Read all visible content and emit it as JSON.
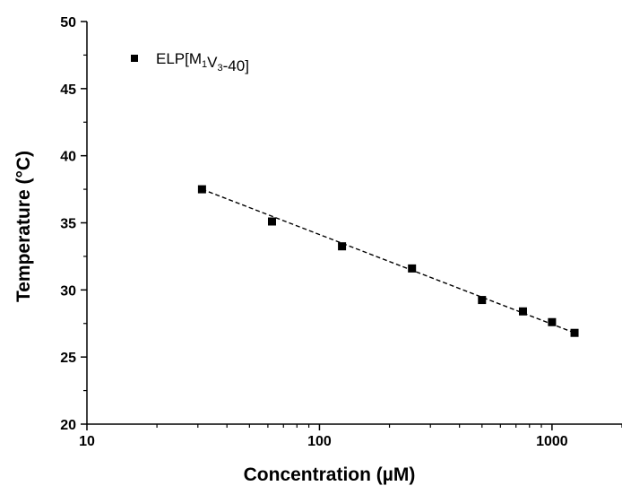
{
  "chart_data": {
    "type": "scatter",
    "xlabel": "Concentration (µM)",
    "ylabel": "Temperature (°C)",
    "xscale": "log",
    "xlim": [
      10,
      2000
    ],
    "ylim": [
      20,
      50
    ],
    "x_ticks": [
      10,
      100,
      1000
    ],
    "x_tick_labels": [
      "10",
      "100",
      "1000"
    ],
    "y_ticks": [
      20,
      25,
      30,
      35,
      40,
      45,
      50
    ],
    "y_tick_labels": [
      "20",
      "25",
      "30",
      "35",
      "40",
      "45",
      "50"
    ],
    "grid": false,
    "legend_position": "top-left",
    "series": [
      {
        "name": "ELP[M1V3-40]",
        "marker": "square",
        "color": "#000000",
        "x": [
          31.25,
          62.5,
          125,
          250,
          500,
          750,
          1000,
          1250
        ],
        "y": [
          37.5,
          35.1,
          33.25,
          31.6,
          29.25,
          28.4,
          27.6,
          26.8
        ]
      }
    ],
    "fit_line": {
      "style": "dashed",
      "color": "#000000",
      "x": [
        31.25,
        1250
      ],
      "y": [
        37.5,
        26.8
      ]
    },
    "legend": {
      "parts": [
        {
          "text": "ELP[M",
          "sub": false
        },
        {
          "text": "1",
          "sub": true
        },
        {
          "text": "V",
          "sub": false
        },
        {
          "text": "3",
          "sub": true
        },
        {
          "text": "-40]",
          "sub": false
        }
      ]
    }
  }
}
